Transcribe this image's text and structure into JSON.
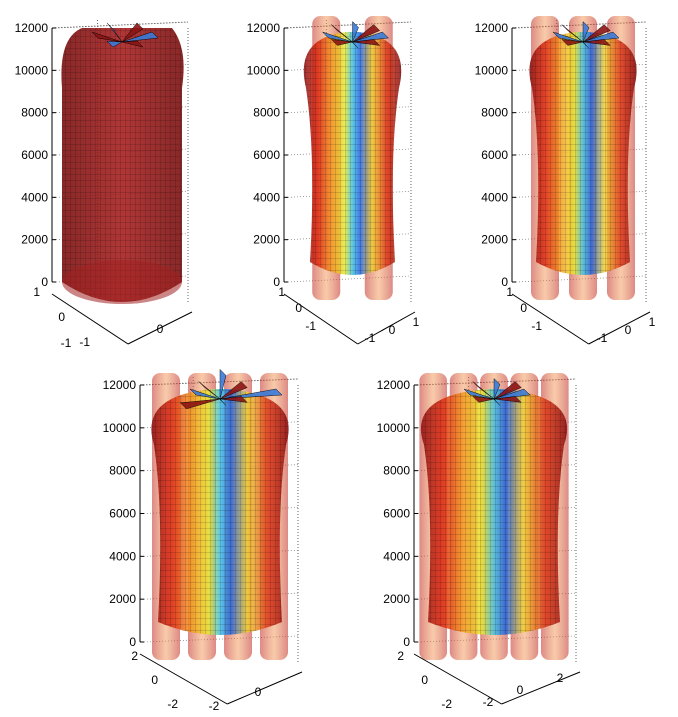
{
  "colors": {
    "hot": "#8c1414",
    "hot_light": "#c0282a",
    "axis": "#000000",
    "grid": "#666666"
  },
  "chart_data": [
    {
      "type": "3d-surface",
      "z_ticks": [
        "0",
        "2000",
        "4000",
        "6000",
        "8000",
        "10000",
        "12000"
      ],
      "zlim": [
        0,
        12000
      ],
      "x_ticks": [
        "-1",
        "0"
      ],
      "y_ticks": [
        "-1",
        "0",
        "1"
      ],
      "n_cylinders": 1,
      "colormap": "jet",
      "grid": true
    },
    {
      "type": "3d-surface",
      "z_ticks": [
        "0",
        "2000",
        "4000",
        "6000",
        "8000",
        "10000",
        "12000"
      ],
      "zlim": [
        0,
        12000
      ],
      "x_ticks": [
        "-1",
        "0",
        "1"
      ],
      "y_ticks": [
        "-1",
        "0",
        "1"
      ],
      "n_cylinders": 2,
      "colormap": "jet",
      "grid": true
    },
    {
      "type": "3d-surface",
      "z_ticks": [
        "0",
        "2000",
        "4000",
        "6000",
        "8000",
        "10000",
        "12000"
      ],
      "zlim": [
        0,
        12000
      ],
      "x_ticks": [
        "-1",
        "0",
        "1"
      ],
      "y_ticks": [
        "-1",
        "0",
        "1"
      ],
      "n_cylinders": 3,
      "colormap": "jet",
      "grid": true
    },
    {
      "type": "3d-surface",
      "z_ticks": [
        "0",
        "2000",
        "4000",
        "6000",
        "8000",
        "10000",
        "12000"
      ],
      "zlim": [
        0,
        12000
      ],
      "x_ticks": [
        "-2",
        "0"
      ],
      "y_ticks": [
        "-2",
        "0",
        "2"
      ],
      "n_cylinders": 4,
      "colormap": "jet",
      "grid": true
    },
    {
      "type": "3d-surface",
      "z_ticks": [
        "0",
        "2000",
        "4000",
        "6000",
        "8000",
        "10000",
        "12000"
      ],
      "zlim": [
        0,
        12000
      ],
      "x_ticks": [
        "-2",
        "0",
        "2"
      ],
      "y_ticks": [
        "-2",
        "0",
        "2"
      ],
      "n_cylinders": 5,
      "colormap": "jet",
      "grid": true
    }
  ]
}
